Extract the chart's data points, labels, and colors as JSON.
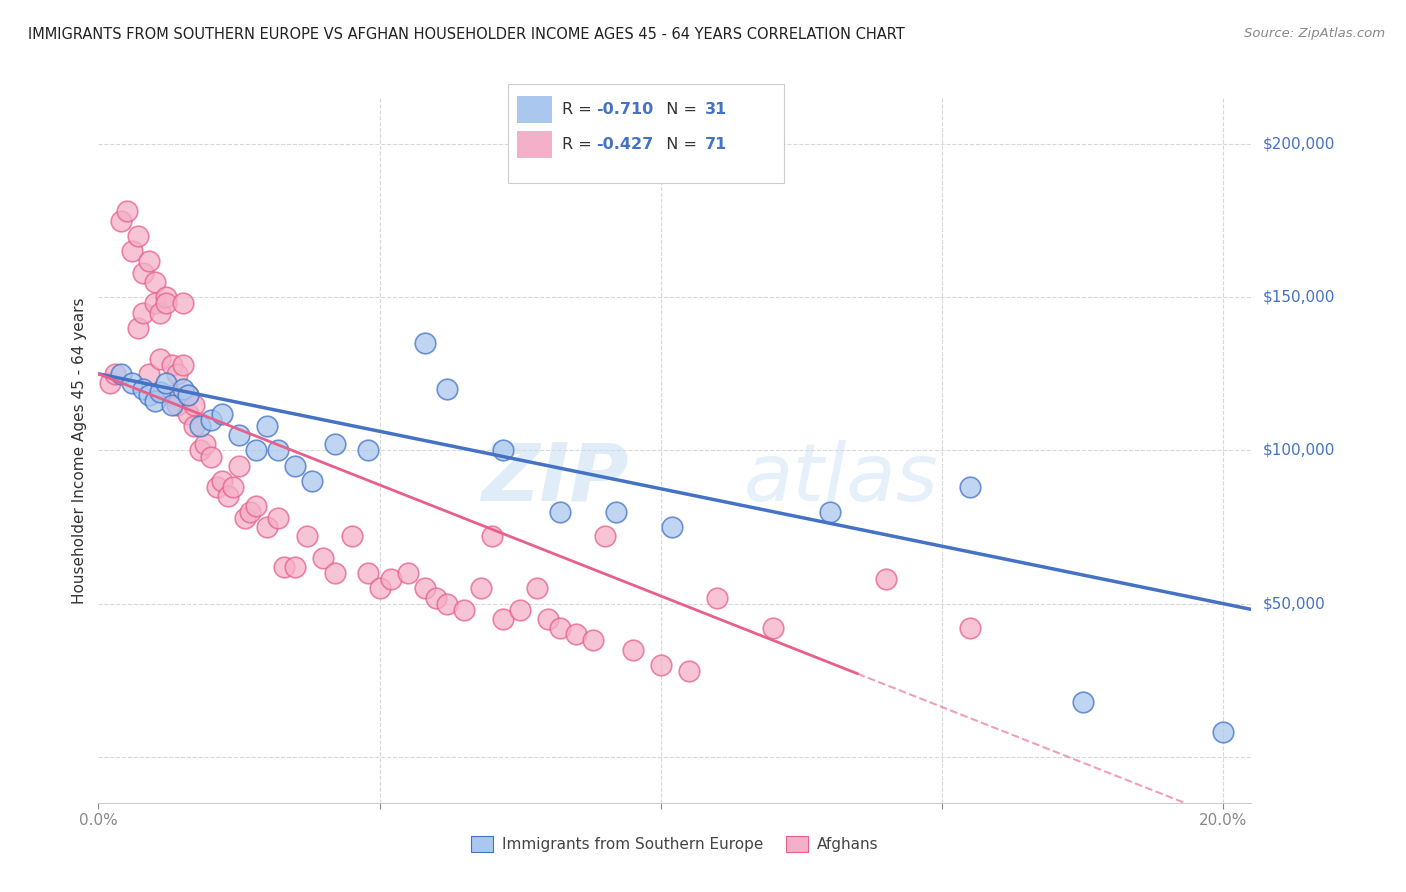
{
  "title": "IMMIGRANTS FROM SOUTHERN EUROPE VS AFGHAN HOUSEHOLDER INCOME AGES 45 - 64 YEARS CORRELATION CHART",
  "source": "Source: ZipAtlas.com",
  "ylabel": "Householder Income Ages 45 - 64 years",
  "xlim": [
    0.0,
    0.205
  ],
  "ylim": [
    -15000,
    215000
  ],
  "xticks": [
    0.0,
    0.05,
    0.1,
    0.15,
    0.2
  ],
  "xticklabels": [
    "0.0%",
    "",
    "",
    "",
    "20.0%"
  ],
  "ytick_positions": [
    0,
    50000,
    100000,
    150000,
    200000
  ],
  "ytick_labels": [
    "",
    "$50,000",
    "$100,000",
    "$150,000",
    "$200,000"
  ],
  "blue_R": "-0.710",
  "blue_N": "31",
  "pink_R": "-0.427",
  "pink_N": "71",
  "legend_label_blue": "Immigrants from Southern Europe",
  "legend_label_pink": "Afghans",
  "blue_scatter_x": [
    0.004,
    0.006,
    0.008,
    0.009,
    0.01,
    0.011,
    0.012,
    0.013,
    0.015,
    0.016,
    0.018,
    0.02,
    0.022,
    0.025,
    0.028,
    0.03,
    0.032,
    0.035,
    0.038,
    0.042,
    0.048,
    0.058,
    0.062,
    0.072,
    0.082,
    0.092,
    0.102,
    0.13,
    0.155,
    0.175,
    0.2
  ],
  "blue_scatter_y": [
    125000,
    122000,
    120000,
    118000,
    116000,
    119000,
    122000,
    115000,
    120000,
    118000,
    108000,
    110000,
    112000,
    105000,
    100000,
    108000,
    100000,
    95000,
    90000,
    102000,
    100000,
    135000,
    120000,
    100000,
    80000,
    80000,
    75000,
    80000,
    88000,
    18000,
    8000
  ],
  "pink_scatter_x": [
    0.002,
    0.003,
    0.004,
    0.005,
    0.006,
    0.007,
    0.007,
    0.008,
    0.008,
    0.009,
    0.009,
    0.01,
    0.01,
    0.011,
    0.011,
    0.012,
    0.012,
    0.013,
    0.013,
    0.014,
    0.014,
    0.015,
    0.015,
    0.016,
    0.016,
    0.017,
    0.017,
    0.018,
    0.019,
    0.02,
    0.021,
    0.022,
    0.023,
    0.024,
    0.025,
    0.026,
    0.027,
    0.028,
    0.03,
    0.032,
    0.033,
    0.035,
    0.037,
    0.04,
    0.042,
    0.045,
    0.048,
    0.05,
    0.052,
    0.055,
    0.058,
    0.06,
    0.062,
    0.065,
    0.068,
    0.07,
    0.072,
    0.075,
    0.078,
    0.08,
    0.082,
    0.085,
    0.088,
    0.09,
    0.095,
    0.1,
    0.105,
    0.11,
    0.12,
    0.14,
    0.155
  ],
  "pink_scatter_y": [
    122000,
    125000,
    175000,
    178000,
    165000,
    170000,
    140000,
    158000,
    145000,
    162000,
    125000,
    155000,
    148000,
    145000,
    130000,
    150000,
    148000,
    128000,
    118000,
    125000,
    115000,
    148000,
    128000,
    118000,
    112000,
    115000,
    108000,
    100000,
    102000,
    98000,
    88000,
    90000,
    85000,
    88000,
    95000,
    78000,
    80000,
    82000,
    75000,
    78000,
    62000,
    62000,
    72000,
    65000,
    60000,
    72000,
    60000,
    55000,
    58000,
    60000,
    55000,
    52000,
    50000,
    48000,
    55000,
    72000,
    45000,
    48000,
    55000,
    45000,
    42000,
    40000,
    38000,
    72000,
    35000,
    30000,
    28000,
    52000,
    42000,
    58000,
    42000
  ],
  "blue_color": "#aac8ee",
  "pink_color": "#f4b0c8",
  "blue_line_color": "#4472c4",
  "pink_line_color": "#e8608a",
  "watermark_text": "ZIP",
  "watermark_text2": "atlas",
  "background_color": "#ffffff",
  "grid_color": "#d8d8d8",
  "text_color": "#333333",
  "blue_text_color": "#4472c4",
  "pink_text_color": "#e8608a"
}
